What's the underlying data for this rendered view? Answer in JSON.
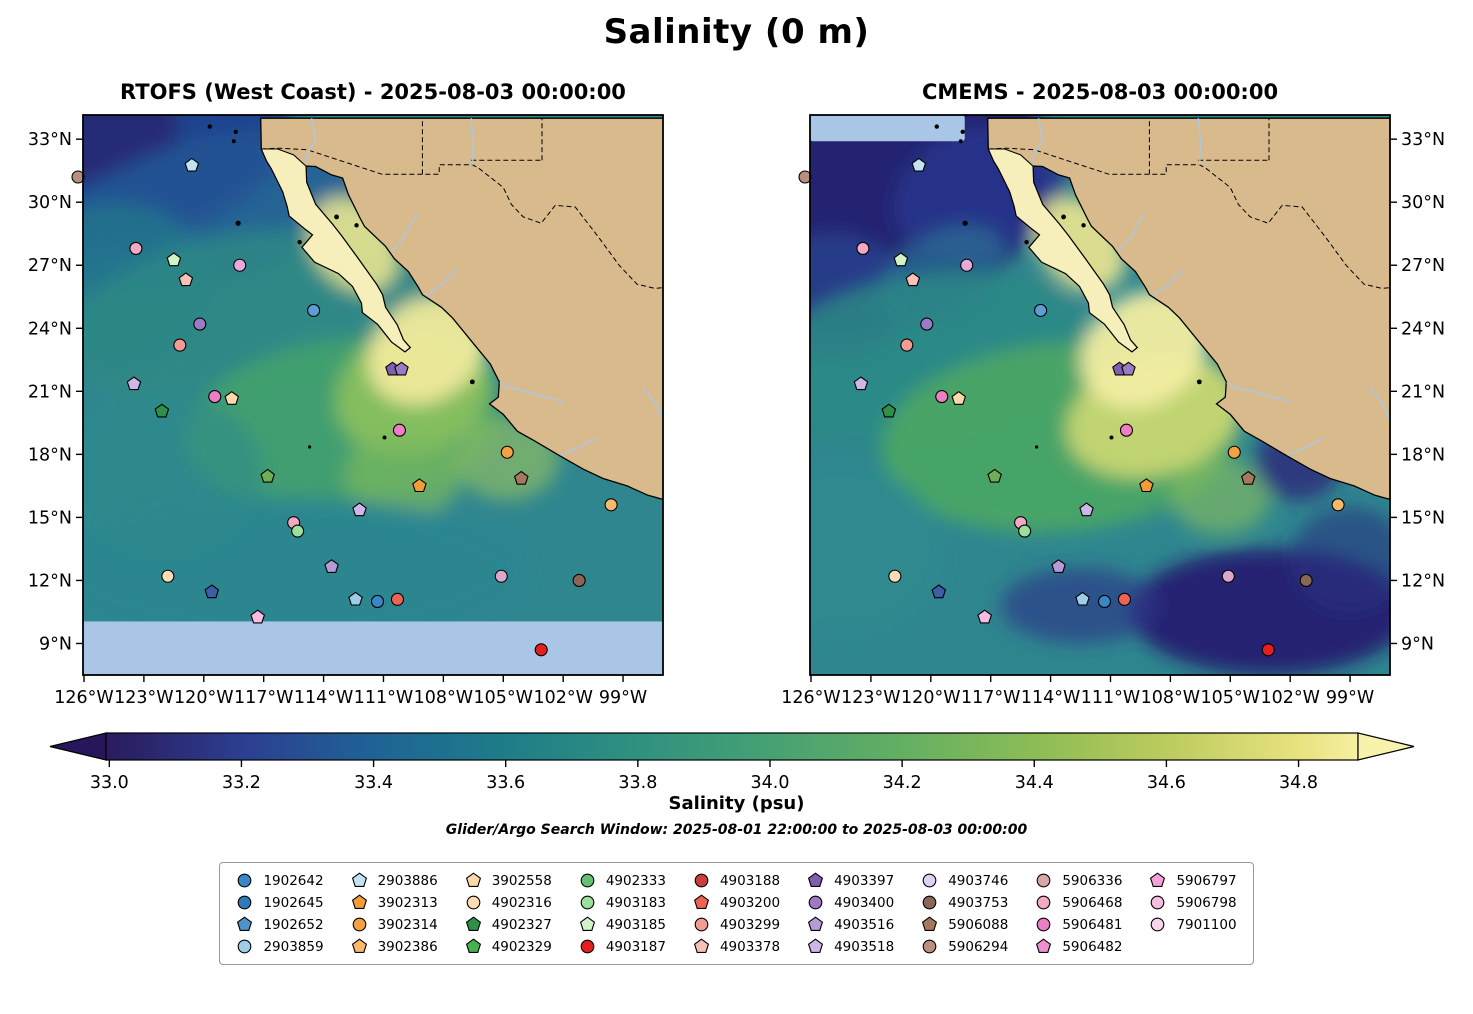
{
  "title": "Salinity (0 m)",
  "panels": [
    {
      "title": "RTOFS (West Coast) - 2025-08-03 00:00:00",
      "model": "RTOFS (West Coast)",
      "datetime": "2025-08-03 00:00:00"
    },
    {
      "title": "CMEMS - 2025-08-03 00:00:00",
      "model": "CMEMS",
      "datetime": "2025-08-03 00:00:00"
    }
  ],
  "axes": {
    "lat_ticks": [
      "33°N",
      "30°N",
      "27°N",
      "24°N",
      "21°N",
      "18°N",
      "15°N",
      "12°N",
      "9°N"
    ],
    "lat_values": [
      33,
      30,
      27,
      24,
      21,
      18,
      15,
      12,
      9
    ],
    "lon_ticks": [
      "126°W",
      "123°W",
      "120°W",
      "117°W",
      "114°W",
      "111°W",
      "108°W",
      "105°W",
      "102°W",
      "99°W"
    ],
    "lon_values": [
      -126,
      -123,
      -120,
      -117,
      -114,
      -111,
      -108,
      -105,
      -102,
      -99
    ],
    "lon_range": [
      -126.05,
      -97.0
    ],
    "lat_range": [
      7.5,
      34.15
    ]
  },
  "colorbar": {
    "label": "Salinity (psu)",
    "ticks": [
      "33.0",
      "33.2",
      "33.4",
      "33.6",
      "33.8",
      "34.0",
      "34.2",
      "34.4",
      "34.6",
      "34.8"
    ],
    "tick_values": [
      33.0,
      33.2,
      33.4,
      33.6,
      33.8,
      34.0,
      34.2,
      34.4,
      34.6,
      34.8
    ],
    "range": [
      32.995,
      34.89
    ],
    "under_color": "#27175a",
    "over_color": "#f8f2ac",
    "stops": [
      {
        "v": 33.0,
        "c": "#2a1c5e"
      },
      {
        "v": 33.2,
        "c": "#2c3e90"
      },
      {
        "v": 33.4,
        "c": "#1f6396"
      },
      {
        "v": 33.6,
        "c": "#1e7d88"
      },
      {
        "v": 33.8,
        "c": "#309180"
      },
      {
        "v": 34.0,
        "c": "#46a173"
      },
      {
        "v": 34.2,
        "c": "#64af62"
      },
      {
        "v": 34.4,
        "c": "#8cbc56"
      },
      {
        "v": 34.6,
        "c": "#bccb5d"
      },
      {
        "v": 34.8,
        "c": "#e8e27f"
      },
      {
        "v": 34.89,
        "c": "#f6efa2"
      }
    ]
  },
  "subtitle": "Glider/Argo Search Window: 2025-08-01 22:00:00 to 2025-08-03 00:00:00",
  "palette": {
    "land": "#d8ba8d",
    "peninsula": "#f6efbc",
    "ocean_base": "#2f868f",
    "masked": "#a9c6e6",
    "coastline": "#000000",
    "river": "#aac8e8",
    "frame": "#000000",
    "legend_border": "#999999"
  },
  "legend": {
    "columns": [
      [
        {
          "id": "1902642",
          "shape": "circle",
          "color": "#3a87c8"
        },
        {
          "id": "1902645",
          "shape": "circle",
          "color": "#2f7ab8"
        },
        {
          "id": "1902652",
          "shape": "pentagon",
          "color": "#4f93cb"
        },
        {
          "id": "2903859",
          "shape": "circle",
          "color": "#9fcde8"
        }
      ],
      [
        {
          "id": "2903886",
          "shape": "pentagon",
          "color": "#c3e3f2"
        },
        {
          "id": "3902313",
          "shape": "pentagon",
          "color": "#f29d38"
        },
        {
          "id": "3902314",
          "shape": "circle",
          "color": "#f5a142"
        },
        {
          "id": "3902386",
          "shape": "pentagon",
          "color": "#f9b96a"
        }
      ],
      [
        {
          "id": "3902558",
          "shape": "pentagon",
          "color": "#fbd9a8"
        },
        {
          "id": "4902316",
          "shape": "circle",
          "color": "#fcdcb4"
        },
        {
          "id": "4902327",
          "shape": "pentagon",
          "color": "#2f9147"
        },
        {
          "id": "4902329",
          "shape": "pentagon",
          "color": "#46b24e"
        }
      ],
      [
        {
          "id": "4902333",
          "shape": "circle",
          "color": "#63c272"
        },
        {
          "id": "4903183",
          "shape": "circle",
          "color": "#9adf9a"
        },
        {
          "id": "4903185",
          "shape": "pentagon",
          "color": "#d2f2c8"
        },
        {
          "id": "4903187",
          "shape": "circle",
          "color": "#e31f1f"
        }
      ],
      [
        {
          "id": "4903188",
          "shape": "circle",
          "color": "#cc3d3d"
        },
        {
          "id": "4903200",
          "shape": "pentagon",
          "color": "#ef6352"
        },
        {
          "id": "4903299",
          "shape": "circle",
          "color": "#f49b94"
        },
        {
          "id": "4903378",
          "shape": "pentagon",
          "color": "#f9c0b6"
        }
      ],
      [
        {
          "id": "4903397",
          "shape": "pentagon",
          "color": "#7e5fb0"
        },
        {
          "id": "4903400",
          "shape": "circle",
          "color": "#9b7cc4"
        },
        {
          "id": "4903516",
          "shape": "pentagon",
          "color": "#b79bd6"
        },
        {
          "id": "4903518",
          "shape": "pentagon",
          "color": "#cdb6e8"
        }
      ],
      [
        {
          "id": "4903746",
          "shape": "circle",
          "color": "#e0d0f2"
        },
        {
          "id": "4903753",
          "shape": "circle",
          "color": "#8a6656"
        },
        {
          "id": "5906088",
          "shape": "pentagon",
          "color": "#a57a5c"
        },
        {
          "id": "5906294",
          "shape": "circle",
          "color": "#b98f7d"
        }
      ],
      [
        {
          "id": "5906336",
          "shape": "circle",
          "color": "#d9a8a4"
        },
        {
          "id": "5906468",
          "shape": "circle",
          "color": "#f2a9c4"
        },
        {
          "id": "5906481",
          "shape": "circle",
          "color": "#ec7fc4"
        },
        {
          "id": "5906482",
          "shape": "pentagon",
          "color": "#ee8fd0"
        }
      ],
      [
        {
          "id": "5906797",
          "shape": "pentagon",
          "color": "#f3a3d6"
        },
        {
          "id": "5906798",
          "shape": "circle",
          "color": "#f7bce0"
        },
        {
          "id": "7901100",
          "shape": "circle",
          "color": "#fad4ec"
        }
      ]
    ]
  },
  "chart_data": {
    "type": "heatmap",
    "title": "Salinity (0 m)",
    "variable": "Salinity (psu)",
    "depth_m": 0,
    "panels": [
      {
        "model": "RTOFS (West Coast)",
        "datetime": "2025-08-03 00:00:00"
      },
      {
        "model": "CMEMS",
        "datetime": "2025-08-03 00:00:00"
      }
    ],
    "lon_ticks_deg_w": [
      126,
      123,
      120,
      117,
      114,
      111,
      108,
      105,
      102,
      99
    ],
    "lat_ticks_deg_n": [
      33,
      30,
      27,
      24,
      21,
      18,
      15,
      12,
      9
    ],
    "colorbar_tick_values_psu": [
      33.0,
      33.2,
      33.4,
      33.6,
      33.8,
      34.0,
      34.2,
      34.4,
      34.6,
      34.8
    ],
    "search_window": {
      "start": "2025-08-01 22:00:00",
      "end": "2025-08-03 00:00:00"
    },
    "platform_ids": [
      "1902642",
      "1902645",
      "1902652",
      "2903859",
      "2903886",
      "3902313",
      "3902314",
      "3902386",
      "3902558",
      "4902316",
      "4902327",
      "4902329",
      "4902333",
      "4903183",
      "4903185",
      "4903187",
      "4903188",
      "4903200",
      "4903299",
      "4903378",
      "4903397",
      "4903400",
      "4903516",
      "4903518",
      "4903746",
      "4903753",
      "5906088",
      "5906294",
      "5906336",
      "5906468",
      "5906481",
      "5906482",
      "5906797",
      "5906798",
      "7901100"
    ],
    "markers": [
      {
        "lon": -126.3,
        "lat": 31.2,
        "shape": "circle",
        "color": "#b98f7d"
      },
      {
        "lon": -120.6,
        "lat": 31.75,
        "shape": "pentagon",
        "color": "#c3e3f2"
      },
      {
        "lon": -123.4,
        "lat": 27.8,
        "shape": "circle",
        "color": "#f2a9c4"
      },
      {
        "lon": -121.5,
        "lat": 27.25,
        "shape": "pentagon",
        "color": "#d2f2c8"
      },
      {
        "lon": -118.2,
        "lat": 27.0,
        "shape": "circle",
        "color": "#e9a8dc"
      },
      {
        "lon": -120.9,
        "lat": 26.3,
        "shape": "pentagon",
        "color": "#f9c0b6"
      },
      {
        "lon": -114.5,
        "lat": 24.85,
        "shape": "circle",
        "color": "#5a9fd4"
      },
      {
        "lon": -120.2,
        "lat": 24.2,
        "shape": "circle",
        "color": "#9b7cc4"
      },
      {
        "lon": -121.2,
        "lat": 23.2,
        "shape": "circle",
        "color": "#f49b94"
      },
      {
        "lon": -110.55,
        "lat": 22.05,
        "shape": "pentagon",
        "color": "#7e5fb0"
      },
      {
        "lon": -110.1,
        "lat": 22.05,
        "shape": "pentagon",
        "color": "#9b7cc4"
      },
      {
        "lon": -123.5,
        "lat": 21.35,
        "shape": "pentagon",
        "color": "#cdb6e8"
      },
      {
        "lon": -122.1,
        "lat": 20.05,
        "shape": "pentagon",
        "color": "#2f9147"
      },
      {
        "lon": -119.45,
        "lat": 20.75,
        "shape": "circle",
        "color": "#ec7fc4"
      },
      {
        "lon": -118.6,
        "lat": 20.65,
        "shape": "pentagon",
        "color": "#fbd9a8"
      },
      {
        "lon": -110.2,
        "lat": 19.15,
        "shape": "circle",
        "color": "#ec7fc4"
      },
      {
        "lon": -104.8,
        "lat": 18.1,
        "shape": "circle",
        "color": "#f5a142"
      },
      {
        "lon": -116.8,
        "lat": 16.95,
        "shape": "pentagon",
        "color": "#6fae57"
      },
      {
        "lon": -104.1,
        "lat": 16.85,
        "shape": "pentagon",
        "color": "#a57a5c"
      },
      {
        "lon": -109.2,
        "lat": 16.5,
        "shape": "pentagon",
        "color": "#f29d38"
      },
      {
        "lon": -99.6,
        "lat": 15.6,
        "shape": "circle",
        "color": "#f9b96a"
      },
      {
        "lon": -112.2,
        "lat": 15.35,
        "shape": "pentagon",
        "color": "#cdb6e8"
      },
      {
        "lon": -115.5,
        "lat": 14.75,
        "shape": "circle",
        "color": "#f2a9c4"
      },
      {
        "lon": -115.3,
        "lat": 14.35,
        "shape": "circle",
        "color": "#9adf9a"
      },
      {
        "lon": -113.6,
        "lat": 12.65,
        "shape": "pentagon",
        "color": "#b79bd6"
      },
      {
        "lon": -121.8,
        "lat": 12.2,
        "shape": "circle",
        "color": "#fcdcb4"
      },
      {
        "lon": -105.1,
        "lat": 12.2,
        "shape": "circle",
        "color": "#d9a8cc"
      },
      {
        "lon": -101.2,
        "lat": 12.0,
        "shape": "circle",
        "color": "#8a6656"
      },
      {
        "lon": -119.6,
        "lat": 11.45,
        "shape": "pentagon",
        "color": "#3a5fa8"
      },
      {
        "lon": -112.4,
        "lat": 11.1,
        "shape": "pentagon",
        "color": "#9fcde8"
      },
      {
        "lon": -111.3,
        "lat": 11.0,
        "shape": "circle",
        "color": "#3a87c8"
      },
      {
        "lon": -110.3,
        "lat": 11.1,
        "shape": "circle",
        "color": "#ef6352"
      },
      {
        "lon": -117.3,
        "lat": 10.25,
        "shape": "pentagon",
        "color": "#f7bce0"
      },
      {
        "lon": -103.1,
        "lat": 8.7,
        "shape": "circle",
        "color": "#e31f1f"
      }
    ],
    "masked_regions": [
      {
        "panel": "RTOFS (West Coast)",
        "region": "lat < 10°N",
        "color": "#a9c6e6"
      },
      {
        "panel": "CMEMS",
        "region": "top-left corner lat > 32.9°N, lon < 118.3°W",
        "color": "#a9c6e6"
      }
    ]
  }
}
